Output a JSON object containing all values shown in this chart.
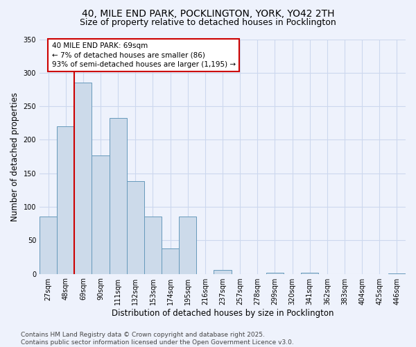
{
  "title_line1": "40, MILE END PARK, POCKLINGTON, YORK, YO42 2TH",
  "title_line2": "Size of property relative to detached houses in Pocklington",
  "xlabel": "Distribution of detached houses by size in Pocklington",
  "ylabel": "Number of detached properties",
  "categories": [
    "27sqm",
    "48sqm",
    "69sqm",
    "90sqm",
    "111sqm",
    "132sqm",
    "153sqm",
    "174sqm",
    "195sqm",
    "216sqm",
    "237sqm",
    "257sqm",
    "278sqm",
    "299sqm",
    "320sqm",
    "341sqm",
    "362sqm",
    "383sqm",
    "404sqm",
    "425sqm",
    "446sqm"
  ],
  "values": [
    85,
    220,
    285,
    177,
    232,
    138,
    85,
    38,
    85,
    0,
    6,
    0,
    0,
    2,
    0,
    2,
    0,
    0,
    0,
    0,
    1
  ],
  "bar_color": "#ccdaea",
  "bar_edge_color": "#6699bb",
  "annotation_text": "40 MILE END PARK: 69sqm\n← 7% of detached houses are smaller (86)\n93% of semi-detached houses are larger (1,195) →",
  "annotation_box_facecolor": "#ffffff",
  "annotation_box_edgecolor": "#cc0000",
  "vline_color": "#cc0000",
  "vline_x": 1.5,
  "grid_color": "#ccd8ee",
  "background_color": "#eef2fc",
  "ylim": [
    0,
    350
  ],
  "yticks": [
    0,
    50,
    100,
    150,
    200,
    250,
    300,
    350
  ],
  "title_fontsize": 10,
  "subtitle_fontsize": 9,
  "axis_label_fontsize": 8.5,
  "tick_fontsize": 7,
  "annotation_fontsize": 7.5,
  "footer_fontsize": 6.5,
  "footer": "Contains HM Land Registry data © Crown copyright and database right 2025.\nContains public sector information licensed under the Open Government Licence v3.0."
}
